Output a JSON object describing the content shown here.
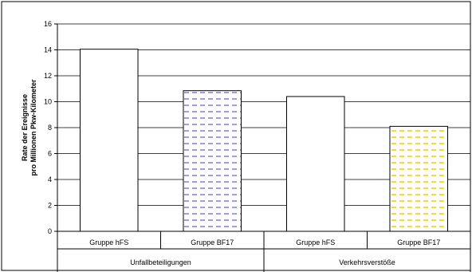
{
  "chart_data": {
    "type": "bar",
    "title": "",
    "ylabel_lines": [
      "Rate der Ereignisse",
      "pro Millionen Pkw-Kilometer"
    ],
    "xlabel": "",
    "ylim": [
      0,
      16
    ],
    "yticks": [
      "0",
      "2",
      "4",
      "6",
      "8",
      "10",
      "12",
      "14",
      "16"
    ],
    "grid": true,
    "legend": "none",
    "groups": [
      {
        "label": "Unfallbeteiligungen",
        "bars": [
          {
            "category": "Gruppe hFS",
            "value": 14.05,
            "fill": "#ffffff",
            "pattern": "none"
          },
          {
            "category": "Gruppe BF17",
            "value": 10.85,
            "fill": "#ffffff",
            "pattern": "dashes",
            "pattern_color": "#8080ff"
          }
        ]
      },
      {
        "label": "Verkehrsverstöße",
        "bars": [
          {
            "category": "Gruppe hFS",
            "value": 10.4,
            "fill": "#ffffff",
            "pattern": "none"
          },
          {
            "category": "Gruppe BF17",
            "value": 8.1,
            "fill": "#ffffff",
            "pattern": "dashes",
            "pattern_color": "#ffcc00"
          }
        ]
      }
    ]
  }
}
